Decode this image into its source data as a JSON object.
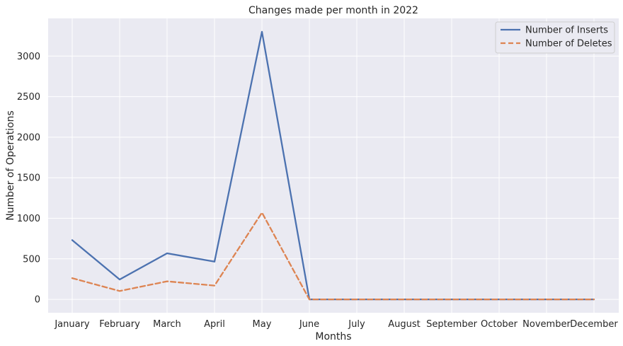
{
  "chart_data": {
    "type": "line",
    "title": "Changes made per month in 2022",
    "xlabel": "Months",
    "ylabel": "Number of Operations",
    "categories": [
      "January",
      "February",
      "March",
      "April",
      "May",
      "June",
      "July",
      "August",
      "September",
      "October",
      "November",
      "December"
    ],
    "series": [
      {
        "name": "Number of Inserts",
        "values": [
          730,
          245,
          568,
          465,
          3300,
          0,
          0,
          0,
          0,
          0,
          0,
          0
        ],
        "color": "#4c72b0",
        "dash": "solid"
      },
      {
        "name": "Number of Deletes",
        "values": [
          262,
          103,
          222,
          170,
          1070,
          0,
          0,
          0,
          0,
          0,
          0,
          0
        ],
        "color": "#dd8452",
        "dash": "dashed"
      }
    ],
    "yticks": [
      0,
      500,
      1000,
      1500,
      2000,
      2500,
      3000
    ],
    "ylim": [
      -165,
      3465
    ],
    "grid": true,
    "legend": "top-right",
    "background": "#eaeaf2"
  }
}
